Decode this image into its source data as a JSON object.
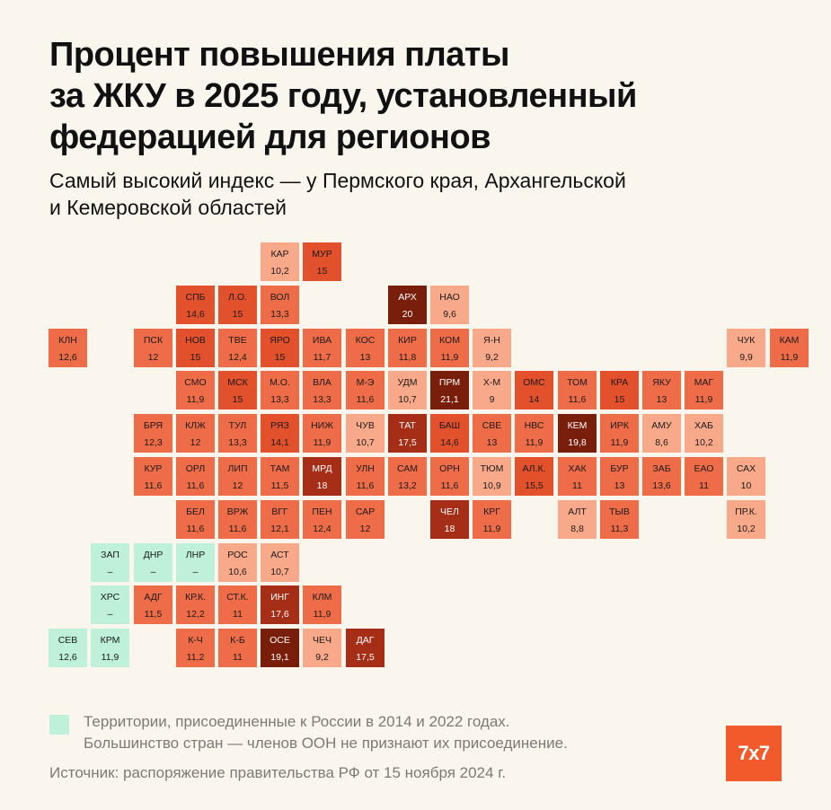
{
  "title": [
    "Процент повышения платы",
    "за ЖКУ в 2025 году, установленный",
    "федерацией для регионов"
  ],
  "subtitle": [
    "Самый высокий индекс — у Пермского края, Архангельской",
    "и Кемеровской областей"
  ],
  "legend": {
    "color": "#bff0da",
    "text": [
      "Территории, присоединенные к России в 2014 и 2022 годах.",
      "Большинство стран — членов ООН не признают их присоединение."
    ]
  },
  "source": "Источник: распоряжение правительства РФ от 15 ноября 2024 г.",
  "logo": "7x7",
  "colors": {
    "annexed": "#bff0da",
    "light": "#f8a98a",
    "mid": "#ee6c48",
    "strong": "#e2502c",
    "dark": "#a62d16",
    "darkest": "#7a1e0c"
  },
  "regions": [
    {
      "abbr": "КАР",
      "value": "10,2",
      "row": 0,
      "col": 6
    },
    {
      "abbr": "МУР",
      "value": "15",
      "row": 0,
      "col": 7
    },
    {
      "abbr": "СПБ",
      "value": "14,6",
      "row": 1,
      "col": 4
    },
    {
      "abbr": "Л.О.",
      "value": "15",
      "row": 1,
      "col": 5
    },
    {
      "abbr": "ВОЛ",
      "value": "13,3",
      "row": 1,
      "col": 6
    },
    {
      "abbr": "АРХ",
      "value": "20",
      "row": 1,
      "col": 9
    },
    {
      "abbr": "НАО",
      "value": "9,6",
      "row": 1,
      "col": 10
    },
    {
      "abbr": "КЛН",
      "value": "12,6",
      "row": 2,
      "col": 1
    },
    {
      "abbr": "ПСК",
      "value": "12",
      "row": 2,
      "col": 3
    },
    {
      "abbr": "НОВ",
      "value": "15",
      "row": 2,
      "col": 4
    },
    {
      "abbr": "ТВЕ",
      "value": "12,4",
      "row": 2,
      "col": 5
    },
    {
      "abbr": "ЯРО",
      "value": "15",
      "row": 2,
      "col": 6
    },
    {
      "abbr": "ИВА",
      "value": "11,7",
      "row": 2,
      "col": 7
    },
    {
      "abbr": "КОС",
      "value": "13",
      "row": 2,
      "col": 8
    },
    {
      "abbr": "КИР",
      "value": "11,8",
      "row": 2,
      "col": 9
    },
    {
      "abbr": "КОМ",
      "value": "11,9",
      "row": 2,
      "col": 10
    },
    {
      "abbr": "Я-Н",
      "value": "9,2",
      "row": 2,
      "col": 11
    },
    {
      "abbr": "ЧУК",
      "value": "9,9",
      "row": 2,
      "col": 17
    },
    {
      "abbr": "КАМ",
      "value": "11,9",
      "row": 2,
      "col": 18
    },
    {
      "abbr": "СМО",
      "value": "11,9",
      "row": 3,
      "col": 4
    },
    {
      "abbr": "МСК",
      "value": "15",
      "row": 3,
      "col": 5
    },
    {
      "abbr": "М.О.",
      "value": "13,3",
      "row": 3,
      "col": 6
    },
    {
      "abbr": "ВЛА",
      "value": "13,3",
      "row": 3,
      "col": 7
    },
    {
      "abbr": "М-Э",
      "value": "11,6",
      "row": 3,
      "col": 8
    },
    {
      "abbr": "УДМ",
      "value": "10,7",
      "row": 3,
      "col": 9
    },
    {
      "abbr": "ПРМ",
      "value": "21,1",
      "row": 3,
      "col": 10
    },
    {
      "abbr": "Х-М",
      "value": "9",
      "row": 3,
      "col": 11
    },
    {
      "abbr": "ОМС",
      "value": "14",
      "row": 3,
      "col": 12
    },
    {
      "abbr": "ТОМ",
      "value": "11,6",
      "row": 3,
      "col": 13
    },
    {
      "abbr": "КРА",
      "value": "15",
      "row": 3,
      "col": 14
    },
    {
      "abbr": "ЯКУ",
      "value": "13",
      "row": 3,
      "col": 15
    },
    {
      "abbr": "МАГ",
      "value": "11,9",
      "row": 3,
      "col": 16
    },
    {
      "abbr": "БРЯ",
      "value": "12,3",
      "row": 4,
      "col": 3
    },
    {
      "abbr": "КЛЖ",
      "value": "12",
      "row": 4,
      "col": 4
    },
    {
      "abbr": "ТУЛ",
      "value": "13,3",
      "row": 4,
      "col": 5
    },
    {
      "abbr": "РЯЗ",
      "value": "14,1",
      "row": 4,
      "col": 6
    },
    {
      "abbr": "НИЖ",
      "value": "11,9",
      "row": 4,
      "col": 7
    },
    {
      "abbr": "ЧУВ",
      "value": "10,7",
      "row": 4,
      "col": 8
    },
    {
      "abbr": "ТАТ",
      "value": "17,5",
      "row": 4,
      "col": 9
    },
    {
      "abbr": "БАШ",
      "value": "14,6",
      "row": 4,
      "col": 10
    },
    {
      "abbr": "СВЕ",
      "value": "13",
      "row": 4,
      "col": 11
    },
    {
      "abbr": "НВС",
      "value": "11,9",
      "row": 4,
      "col": 12
    },
    {
      "abbr": "КЕМ",
      "value": "19,8",
      "row": 4,
      "col": 13
    },
    {
      "abbr": "ИРК",
      "value": "11,9",
      "row": 4,
      "col": 14
    },
    {
      "abbr": "АМУ",
      "value": "8,6",
      "row": 4,
      "col": 15
    },
    {
      "abbr": "ХАБ",
      "value": "10,2",
      "row": 4,
      "col": 16
    },
    {
      "abbr": "КУР",
      "value": "11,6",
      "row": 5,
      "col": 3
    },
    {
      "abbr": "ОРЛ",
      "value": "11,6",
      "row": 5,
      "col": 4
    },
    {
      "abbr": "ЛИП",
      "value": "12",
      "row": 5,
      "col": 5
    },
    {
      "abbr": "ТАМ",
      "value": "11,5",
      "row": 5,
      "col": 6
    },
    {
      "abbr": "МРД",
      "value": "18",
      "row": 5,
      "col": 7
    },
    {
      "abbr": "УЛН",
      "value": "11,6",
      "row": 5,
      "col": 8
    },
    {
      "abbr": "САМ",
      "value": "13,2",
      "row": 5,
      "col": 9
    },
    {
      "abbr": "ОРН",
      "value": "11,6",
      "row": 5,
      "col": 10
    },
    {
      "abbr": "ТЮМ",
      "value": "10,9",
      "row": 5,
      "col": 11
    },
    {
      "abbr": "АЛ.К.",
      "value": "15,5",
      "row": 5,
      "col": 12
    },
    {
      "abbr": "ХАК",
      "value": "11",
      "row": 5,
      "col": 13
    },
    {
      "abbr": "БУР",
      "value": "13",
      "row": 5,
      "col": 14
    },
    {
      "abbr": "ЗАБ",
      "value": "13,6",
      "row": 5,
      "col": 15
    },
    {
      "abbr": "ЕАО",
      "value": "11",
      "row": 5,
      "col": 16
    },
    {
      "abbr": "САХ",
      "value": "10",
      "row": 5,
      "col": 17
    },
    {
      "abbr": "БЕЛ",
      "value": "11,6",
      "row": 6,
      "col": 4
    },
    {
      "abbr": "ВРЖ",
      "value": "11,6",
      "row": 6,
      "col": 5
    },
    {
      "abbr": "ВГГ",
      "value": "12,1",
      "row": 6,
      "col": 6
    },
    {
      "abbr": "ПЕН",
      "value": "12,4",
      "row": 6,
      "col": 7
    },
    {
      "abbr": "САР",
      "value": "12",
      "row": 6,
      "col": 8
    },
    {
      "abbr": "ЧЕЛ",
      "value": "18",
      "row": 6,
      "col": 10
    },
    {
      "abbr": "КРГ",
      "value": "11,9",
      "row": 6,
      "col": 11
    },
    {
      "abbr": "АЛТ",
      "value": "8,8",
      "row": 6,
      "col": 13
    },
    {
      "abbr": "ТЫВ",
      "value": "11,3",
      "row": 6,
      "col": 14
    },
    {
      "abbr": "ПР.К.",
      "value": "10,2",
      "row": 6,
      "col": 17
    },
    {
      "abbr": "ЗАП",
      "value": "–",
      "row": 7,
      "col": 2,
      "annexed": true
    },
    {
      "abbr": "ДНР",
      "value": "–",
      "row": 7,
      "col": 3,
      "annexed": true
    },
    {
      "abbr": "ЛНР",
      "value": "–",
      "row": 7,
      "col": 4,
      "annexed": true
    },
    {
      "abbr": "РОС",
      "value": "10,6",
      "row": 7,
      "col": 5
    },
    {
      "abbr": "АСТ",
      "value": "10,7",
      "row": 7,
      "col": 6
    },
    {
      "abbr": "ХРС",
      "value": "–",
      "row": 8,
      "col": 2,
      "annexed": true
    },
    {
      "abbr": "АДГ",
      "value": "11,5",
      "row": 8,
      "col": 3
    },
    {
      "abbr": "КР.К.",
      "value": "12,2",
      "row": 8,
      "col": 4
    },
    {
      "abbr": "СТ.К.",
      "value": "11",
      "row": 8,
      "col": 5
    },
    {
      "abbr": "ИНГ",
      "value": "17,6",
      "row": 8,
      "col": 6
    },
    {
      "abbr": "КЛМ",
      "value": "11,9",
      "row": 8,
      "col": 7
    },
    {
      "abbr": "СЕВ",
      "value": "12,6",
      "row": 9,
      "col": 1,
      "annexed": true
    },
    {
      "abbr": "КРМ",
      "value": "11,9",
      "row": 9,
      "col": 2,
      "annexed": true
    },
    {
      "abbr": "К-Ч",
      "value": "11,2",
      "row": 9,
      "col": 4
    },
    {
      "abbr": "К-Б",
      "value": "11",
      "row": 9,
      "col": 5
    },
    {
      "abbr": "ОСЕ",
      "value": "19,1",
      "row": 9,
      "col": 6
    },
    {
      "abbr": "ЧЕЧ",
      "value": "9,2",
      "row": 9,
      "col": 7
    },
    {
      "abbr": "ДАГ",
      "value": "17,5",
      "row": 9,
      "col": 8
    }
  ]
}
